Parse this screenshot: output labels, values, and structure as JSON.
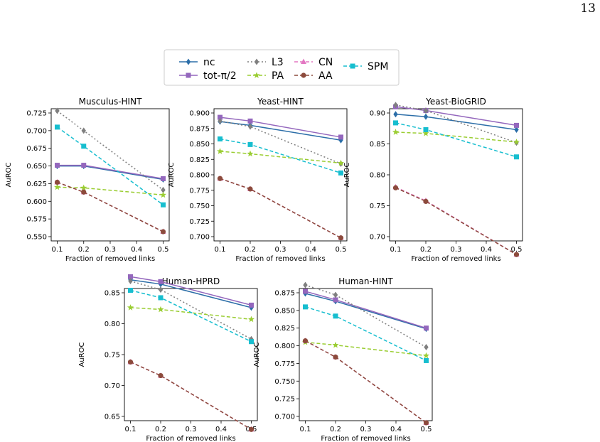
{
  "page_number": "13",
  "legend": {
    "entries": [
      {
        "label": "nc",
        "color": "#2c6ea8",
        "marker": "diamond",
        "dash": "solid"
      },
      {
        "label": "tot-π/2",
        "color": "#9467bd",
        "marker": "square",
        "dash": "solid"
      },
      {
        "label": "L3",
        "color": "#7f7f7f",
        "marker": "diamond",
        "dash": "dotted"
      },
      {
        "label": "PA",
        "color": "#9acd32",
        "marker": "star",
        "dash": "dashed"
      },
      {
        "label": "CN",
        "color": "#e377c2",
        "marker": "triangle",
        "dash": "dashed"
      },
      {
        "label": "AA",
        "color": "#8c4a3c",
        "marker": "circle",
        "dash": "dashed"
      },
      {
        "label": "SPM",
        "color": "#17becf",
        "marker": "square",
        "dash": "dashed"
      }
    ]
  },
  "chart_data": [
    {
      "type": "line",
      "title": "Musculus-HINT",
      "xlabel": "Fraction of removed links",
      "ylabel": "AuROC",
      "x": [
        0.1,
        0.2,
        0.5
      ],
      "xticks": [
        "0.1",
        "0.2",
        "0.3",
        "0.4",
        "0.5"
      ],
      "yticks": [
        "0.550",
        "0.575",
        "0.600",
        "0.625",
        "0.650",
        "0.675",
        "0.700",
        "0.725"
      ],
      "xlim": [
        0.1,
        0.5
      ],
      "ylim": [
        0.55,
        0.725
      ],
      "series": [
        {
          "name": "nc",
          "values": [
            0.65,
            0.65,
            0.631
          ]
        },
        {
          "name": "tot-π/2",
          "values": [
            0.651,
            0.651,
            0.632
          ]
        },
        {
          "name": "L3",
          "values": [
            0.728,
            0.7,
            0.616
          ]
        },
        {
          "name": "PA",
          "values": [
            0.62,
            0.619,
            0.609
          ]
        },
        {
          "name": "CN",
          "values": [
            0.627,
            0.613,
            0.557
          ]
        },
        {
          "name": "AA",
          "values": [
            0.627,
            0.613,
            0.557
          ]
        },
        {
          "name": "SPM",
          "values": [
            0.705,
            0.678,
            0.595
          ]
        }
      ]
    },
    {
      "type": "line",
      "title": "Yeast-HINT",
      "xlabel": "Fraction of removed links",
      "ylabel": "AuROC",
      "x": [
        0.1,
        0.2,
        0.5
      ],
      "xticks": [
        "0.1",
        "0.2",
        "0.3",
        "0.4",
        "0.5"
      ],
      "yticks": [
        "0.700",
        "0.725",
        "0.750",
        "0.775",
        "0.800",
        "0.825",
        "0.850",
        "0.875",
        "0.900"
      ],
      "xlim": [
        0.1,
        0.5
      ],
      "ylim": [
        0.7,
        0.9
      ],
      "series": [
        {
          "name": "nc",
          "values": [
            0.886,
            0.88,
            0.856
          ]
        },
        {
          "name": "tot-π/2",
          "values": [
            0.893,
            0.887,
            0.861
          ]
        },
        {
          "name": "L3",
          "values": [
            0.887,
            0.878,
            0.818
          ]
        },
        {
          "name": "PA",
          "values": [
            0.838,
            0.834,
            0.819
          ]
        },
        {
          "name": "CN",
          "values": [
            0.794,
            0.777,
            0.698
          ]
        },
        {
          "name": "AA",
          "values": [
            0.794,
            0.777,
            0.698
          ]
        },
        {
          "name": "SPM",
          "values": [
            0.858,
            0.849,
            0.803
          ]
        }
      ]
    },
    {
      "type": "line",
      "title": "Yeast-BioGRID",
      "xlabel": "Fraction of removed links",
      "ylabel": "AuROC",
      "x": [
        0.1,
        0.2,
        0.5
      ],
      "xticks": [
        "0.1",
        "0.2",
        "0.3",
        "0.4",
        "0.5"
      ],
      "yticks": [
        "0.70",
        "0.75",
        "0.80",
        "0.85",
        "0.90"
      ],
      "xlim": [
        0.1,
        0.5
      ],
      "ylim": [
        0.7,
        0.9
      ],
      "series": [
        {
          "name": "nc",
          "values": [
            0.898,
            0.894,
            0.873
          ]
        },
        {
          "name": "tot-π/2",
          "values": [
            0.91,
            0.904,
            0.88
          ]
        },
        {
          "name": "L3",
          "values": [
            0.913,
            0.904,
            0.852
          ]
        },
        {
          "name": "PA",
          "values": [
            0.869,
            0.867,
            0.853
          ]
        },
        {
          "name": "CN",
          "values": [
            0.78,
            0.758,
            0.671
          ]
        },
        {
          "name": "AA",
          "values": [
            0.779,
            0.757,
            0.671
          ]
        },
        {
          "name": "SPM",
          "values": [
            0.884,
            0.873,
            0.829
          ]
        }
      ]
    },
    {
      "type": "line",
      "title": "Human-HPRD",
      "xlabel": "Fraction of removed links",
      "ylabel": "AuROC",
      "x": [
        0.1,
        0.2,
        0.5
      ],
      "xticks": [
        "0.1",
        "0.2",
        "0.3",
        "0.4",
        "0.5"
      ],
      "yticks": [
        "0.65",
        "0.70",
        "0.75",
        "0.80",
        "0.85"
      ],
      "xlim": [
        0.1,
        0.5
      ],
      "ylim": [
        0.65,
        0.85
      ],
      "series": [
        {
          "name": "nc",
          "values": [
            0.871,
            0.864,
            0.826
          ]
        },
        {
          "name": "tot-π/2",
          "values": [
            0.876,
            0.868,
            0.83
          ]
        },
        {
          "name": "L3",
          "values": [
            0.869,
            0.855,
            0.775
          ]
        },
        {
          "name": "PA",
          "values": [
            0.826,
            0.823,
            0.807
          ]
        },
        {
          "name": "CN",
          "values": [
            0.738,
            0.716,
            0.629
          ]
        },
        {
          "name": "AA",
          "values": [
            0.738,
            0.716,
            0.629
          ]
        },
        {
          "name": "SPM",
          "values": [
            0.854,
            0.842,
            0.771
          ]
        }
      ]
    },
    {
      "type": "line",
      "title": "Human-HINT",
      "xlabel": "Fraction of removed links",
      "ylabel": "AuROC",
      "x": [
        0.1,
        0.2,
        0.5
      ],
      "xticks": [
        "0.1",
        "0.2",
        "0.3",
        "0.4",
        "0.5"
      ],
      "yticks": [
        "0.700",
        "0.725",
        "0.750",
        "0.775",
        "0.800",
        "0.825",
        "0.850",
        "0.875"
      ],
      "xlim": [
        0.1,
        0.5
      ],
      "ylim": [
        0.7,
        0.875
      ],
      "series": [
        {
          "name": "nc",
          "values": [
            0.874,
            0.863,
            0.824
          ]
        },
        {
          "name": "tot-π/2",
          "values": [
            0.877,
            0.865,
            0.825
          ]
        },
        {
          "name": "L3",
          "values": [
            0.886,
            0.872,
            0.798
          ]
        },
        {
          "name": "PA",
          "values": [
            0.805,
            0.801,
            0.786
          ]
        },
        {
          "name": "CN",
          "values": [
            0.807,
            0.784,
            0.691
          ]
        },
        {
          "name": "AA",
          "values": [
            0.807,
            0.784,
            0.691
          ]
        },
        {
          "name": "SPM",
          "values": [
            0.855,
            0.842,
            0.779
          ]
        }
      ]
    }
  ]
}
